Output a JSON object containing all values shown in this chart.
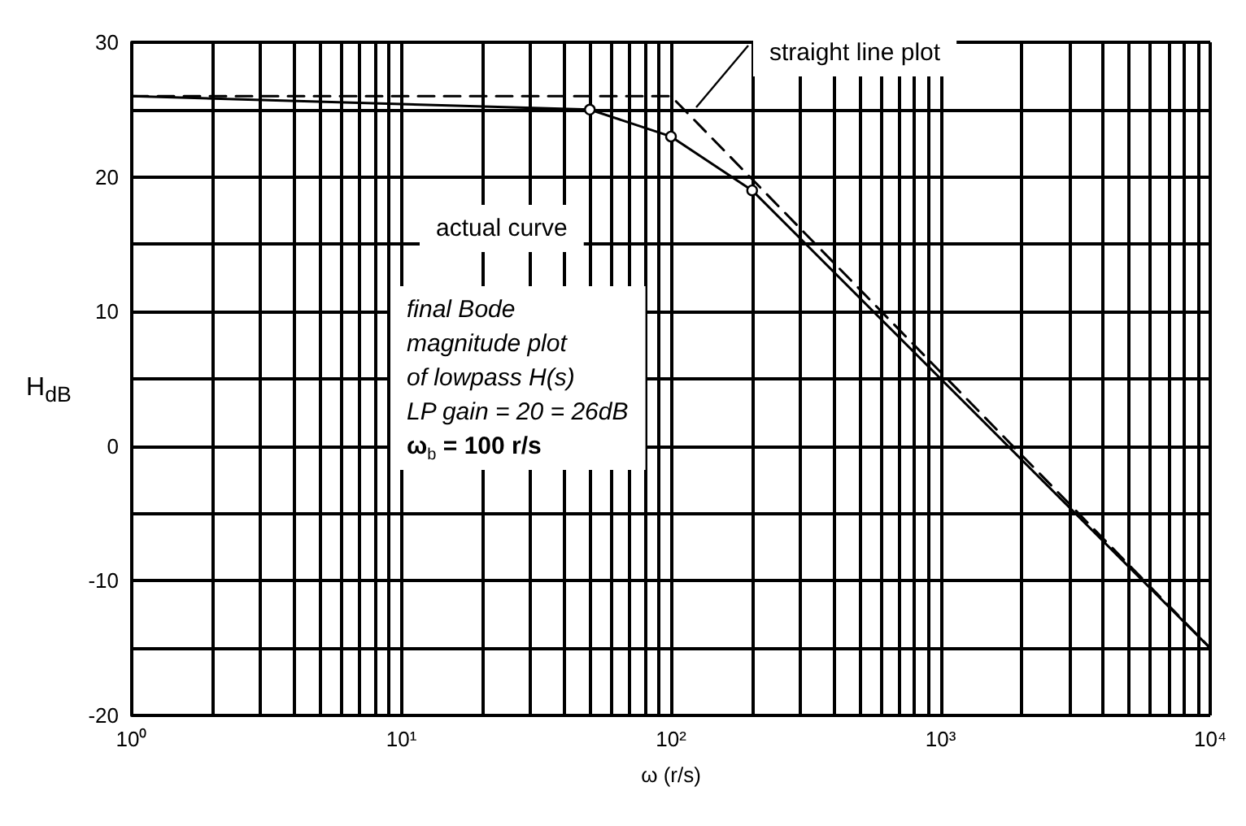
{
  "chart_data": {
    "type": "line",
    "xlabel": "ω (r/s)",
    "ylabel": "H$_{dB}$",
    "log": "x",
    "xlim": [
      1,
      10000
    ],
    "xticks": [
      {
        "value": 1,
        "label": "10⁰"
      },
      {
        "value": 10,
        "label": "10¹"
      },
      {
        "value": 100,
        "label": "10²"
      },
      {
        "value": 1000,
        "label": "10³"
      },
      {
        "value": 10000,
        "label": "10⁴"
      }
    ],
    "ylim": [
      -20,
      30
    ],
    "yticks": [
      -20,
      {
        "value": -15,
        "label": null
      },
      -10,
      {
        "value": -5,
        "label": null
      },
      0,
      {
        "value": 5,
        "label": null
      },
      10,
      {
        "value": 15,
        "label": null
      },
      20,
      {
        "value": 25,
        "label": null
      },
      30
    ],
    "grid": true,
    "series": [
      {
        "color": "#000000",
        "line_style": "dashed",
        "x": [
          1,
          100,
          10000
        ],
        "values": [
          26,
          26,
          -15
        ]
      },
      {
        "color": "#000000",
        "line_style": "solid",
        "marker": "circle",
        "x": [
          1,
          50,
          100,
          200,
          10000
        ],
        "values": [
          26,
          25,
          23,
          19,
          -15
        ]
      }
    ],
    "annotations": [
      "straight line plot",
      "actual curve",
      "final Bode\nmagnitude plot\nof lowpass H(s)\nLP gain = 20 = 26dB\nω$_{b}$ = 100 r/s"
    ]
  }
}
